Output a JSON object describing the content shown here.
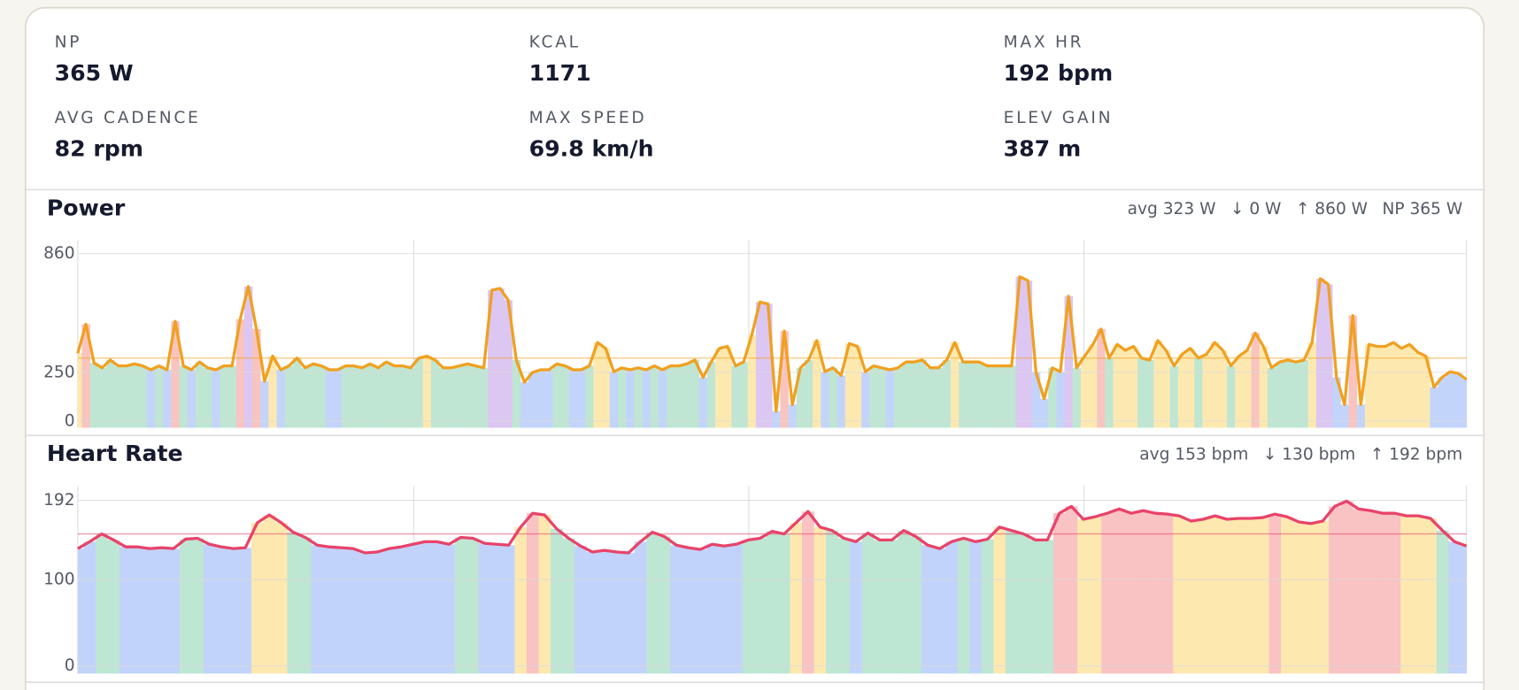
{
  "summary": [
    {
      "label": "NP",
      "value": "365 W"
    },
    {
      "label": "KCAL",
      "value": "1171"
    },
    {
      "label": "MAX HR",
      "value": "192 bpm"
    },
    {
      "label": "AVG CADENCE",
      "value": "82 rpm"
    },
    {
      "label": "MAX SPEED",
      "value": "69.8 km/h"
    },
    {
      "label": "ELEV GAIN",
      "value": "387 m"
    }
  ],
  "chart_data": [
    {
      "type": "line",
      "title": "Power",
      "stats": [
        "avg 323 W",
        "↓ 0 W",
        "↑ 860 W",
        "NP 365 W"
      ],
      "avg_line": 323,
      "ylim": [
        0,
        860
      ],
      "yticks": [
        0,
        250,
        860
      ],
      "grid": true,
      "color": "#f0a020",
      "zone_colors": [
        "#c3d4fb",
        "#bfe6d2",
        "#fde9b0",
        "#f9c4bf",
        "#dcc6f2"
      ],
      "values": [
        348,
        497,
        298,
        273,
        313,
        283,
        283,
        293,
        283,
        263,
        283,
        263,
        512,
        283,
        263,
        303,
        273,
        263,
        283,
        283,
        522,
        691,
        472,
        204,
        333,
        263,
        283,
        323,
        273,
        293,
        283,
        263,
        263,
        283,
        283,
        273,
        293,
        273,
        303,
        283,
        283,
        273,
        323,
        333,
        313,
        273,
        273,
        283,
        293,
        283,
        273,
        672,
        681,
        621,
        313,
        199,
        249,
        263,
        263,
        293,
        283,
        263,
        263,
        283,
        403,
        373,
        253,
        273,
        263,
        273,
        263,
        283,
        263,
        283,
        283,
        293,
        313,
        224,
        303,
        373,
        383,
        283,
        303,
        442,
        611,
        601,
        50,
        462,
        84,
        273,
        313,
        413,
        253,
        273,
        234,
        398,
        383,
        253,
        283,
        273,
        263,
        273,
        303,
        303,
        313,
        273,
        273,
        313,
        403,
        303,
        303,
        303,
        283,
        283,
        283,
        283,
        741,
        721,
        249,
        114,
        273,
        253,
        641,
        273,
        333,
        393,
        472,
        323,
        393,
        363,
        383,
        323,
        313,
        413,
        363,
        283,
        343,
        373,
        323,
        343,
        403,
        363,
        283,
        333,
        363,
        452,
        383,
        273,
        303,
        313,
        303,
        313,
        403,
        731,
        701,
        224,
        84,
        542,
        84,
        393,
        383,
        383,
        403,
        373,
        393,
        353,
        333,
        174,
        224,
        253,
        244,
        214
      ],
      "zones": [
        2,
        3,
        1,
        1,
        1,
        1,
        1,
        1,
        1,
        0,
        1,
        0,
        3,
        1,
        0,
        1,
        1,
        0,
        1,
        1,
        3,
        4,
        3,
        0,
        2,
        0,
        1,
        1,
        1,
        1,
        1,
        0,
        0,
        1,
        1,
        1,
        1,
        1,
        1,
        1,
        1,
        1,
        1,
        2,
        1,
        1,
        1,
        1,
        1,
        1,
        1,
        4,
        4,
        4,
        1,
        0,
        0,
        0,
        0,
        1,
        1,
        0,
        0,
        1,
        2,
        2,
        0,
        1,
        0,
        1,
        0,
        1,
        0,
        1,
        1,
        1,
        1,
        0,
        1,
        2,
        2,
        1,
        1,
        2,
        4,
        4,
        0,
        3,
        0,
        1,
        1,
        2,
        0,
        1,
        0,
        2,
        2,
        0,
        1,
        1,
        0,
        1,
        1,
        1,
        1,
        1,
        1,
        1,
        2,
        1,
        1,
        1,
        1,
        1,
        1,
        1,
        4,
        4,
        0,
        0,
        1,
        0,
        4,
        1,
        2,
        2,
        3,
        1,
        2,
        2,
        2,
        1,
        1,
        2,
        2,
        1,
        2,
        2,
        1,
        2,
        2,
        2,
        1,
        2,
        2,
        3,
        2,
        1,
        1,
        1,
        1,
        1,
        2,
        4,
        4,
        0,
        0,
        3,
        0,
        2,
        2,
        2,
        2,
        2,
        2,
        2,
        2,
        0,
        0,
        0,
        0,
        0
      ]
    },
    {
      "type": "line",
      "title": "Heart Rate",
      "stats": [
        "avg 153 bpm",
        "↓ 130 bpm",
        "↑ 192 bpm"
      ],
      "avg_line": 153,
      "ylim": [
        0,
        192
      ],
      "yticks": [
        0,
        100,
        192
      ],
      "grid": true,
      "color": "#e8436a",
      "zone_colors": [
        "#c2d3fb",
        "#bde6d3",
        "#fde8b0",
        "#f9c2c3"
      ],
      "values": [
        136,
        144,
        153,
        146,
        138,
        138,
        136,
        137,
        136,
        147,
        148,
        141,
        138,
        136,
        137,
        166,
        175,
        166,
        155,
        149,
        140,
        138,
        137,
        136,
        131,
        132,
        136,
        138,
        141,
        144,
        144,
        141,
        149,
        148,
        142,
        141,
        140,
        161,
        177,
        175,
        159,
        148,
        139,
        132,
        134,
        132,
        131,
        144,
        155,
        150,
        140,
        137,
        135,
        141,
        139,
        141,
        146,
        148,
        156,
        153,
        166,
        179,
        161,
        157,
        148,
        144,
        154,
        146,
        146,
        157,
        150,
        140,
        136,
        144,
        148,
        144,
        147,
        161,
        157,
        153,
        146,
        146,
        177,
        185,
        170,
        173,
        177,
        182,
        177,
        180,
        177,
        176,
        174,
        168,
        170,
        174,
        170,
        171,
        171,
        172,
        176,
        173,
        167,
        165,
        168,
        185,
        191,
        182,
        180,
        177,
        177,
        174,
        174,
        171,
        157,
        144,
        139
      ],
      "zones": [
        0,
        0,
        1,
        1,
        0,
        0,
        0,
        0,
        0,
        1,
        1,
        0,
        0,
        0,
        0,
        2,
        2,
        2,
        1,
        1,
        0,
        0,
        0,
        0,
        0,
        0,
        0,
        0,
        0,
        0,
        0,
        0,
        1,
        1,
        0,
        0,
        0,
        2,
        3,
        2,
        1,
        1,
        0,
        0,
        0,
        0,
        0,
        0,
        1,
        1,
        0,
        0,
        0,
        0,
        0,
        0,
        1,
        1,
        1,
        1,
        2,
        3,
        2,
        1,
        1,
        0,
        1,
        1,
        1,
        1,
        1,
        0,
        0,
        0,
        1,
        0,
        1,
        2,
        1,
        1,
        1,
        1,
        3,
        3,
        2,
        2,
        3,
        3,
        3,
        3,
        3,
        3,
        2,
        2,
        2,
        2,
        2,
        2,
        2,
        2,
        3,
        2,
        2,
        2,
        2,
        3,
        3,
        3,
        3,
        3,
        3,
        2,
        2,
        2,
        1,
        0,
        0
      ]
    }
  ]
}
